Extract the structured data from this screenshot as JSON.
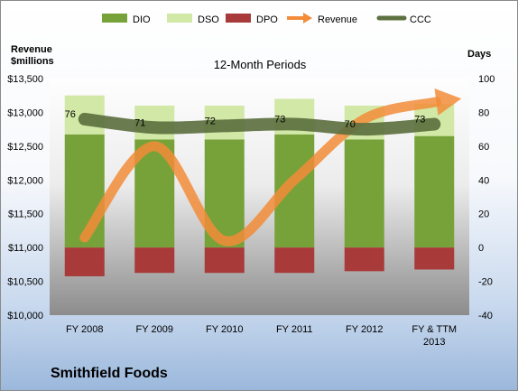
{
  "chart_data": {
    "type": "bar",
    "subtitle": "12-Month Periods",
    "company": "Smithfield Foods",
    "left_axis": {
      "label_line1": "Revenue",
      "label_line2": "$millions",
      "ticks": [
        "$10,000",
        "$10,500",
        "$11,000",
        "$11,500",
        "$12,000",
        "$12,500",
        "$13,000",
        "$13,500"
      ],
      "range": [
        10000,
        13500
      ]
    },
    "right_axis": {
      "label": "Days",
      "ticks": [
        "-40",
        "-20",
        "0",
        "20",
        "40",
        "60",
        "80",
        "100"
      ],
      "range": [
        -40,
        100
      ]
    },
    "categories": [
      "FY 2008",
      "FY 2009",
      "FY 2010",
      "FY 2011",
      "FY 2012",
      "FY & TTM"
    ],
    "category_line2": [
      "",
      "",
      "",
      "",
      "",
      "2013"
    ],
    "legend": [
      {
        "name": "DIO",
        "color": "#77a23a",
        "kind": "box"
      },
      {
        "name": "DSO",
        "color": "#d2e8a6",
        "kind": "box"
      },
      {
        "name": "DPO",
        "color": "#a83a3a",
        "kind": "box"
      },
      {
        "name": "Revenue",
        "color": "#f28c38",
        "kind": "arrow"
      },
      {
        "name": "CCC",
        "color": "#5c7040",
        "kind": "line"
      }
    ],
    "series": [
      {
        "name": "DIO",
        "axis": "right",
        "values": [
          67,
          64,
          64,
          67,
          64,
          66
        ],
        "color": "#77a23a"
      },
      {
        "name": "DSO",
        "axis": "right",
        "values": [
          23,
          20,
          20,
          21,
          20,
          19
        ],
        "color": "#d2e8a6"
      },
      {
        "name": "DPO",
        "axis": "right",
        "values": [
          -17,
          -15,
          -15,
          -15,
          -14,
          -13
        ],
        "color": "#a83a3a"
      },
      {
        "name": "Revenue",
        "axis": "left",
        "values": [
          11150,
          12500,
          11100,
          12000,
          12900,
          13150
        ],
        "color": "#f28c38"
      },
      {
        "name": "CCC",
        "axis": "right",
        "values": [
          76,
          71,
          72,
          73,
          70,
          73
        ],
        "color": "#5c7040"
      }
    ],
    "ccc_labels": [
      "76",
      "71",
      "72",
      "73",
      "70",
      "73"
    ],
    "grid": false,
    "legend_position": "top"
  }
}
